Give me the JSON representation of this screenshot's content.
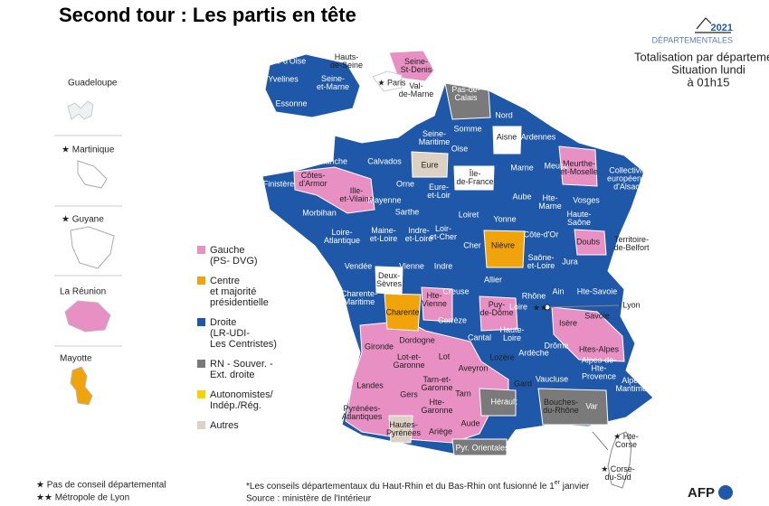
{
  "header": {
    "title": "Second tour : Les partis en tête",
    "logo_year": "2021",
    "logo_label": "DÉPARTEMENTALES",
    "subtitle": [
      "Totalisation par département",
      "Situation lundi",
      "à 01h15"
    ]
  },
  "overseas": [
    "Guadeloupe",
    "★ Martinique",
    "★ Guyane",
    "La Réunion",
    "Mayotte"
  ],
  "legend": [
    {
      "label": [
        "Gauche",
        "(PS- DVG)"
      ],
      "color": "#e88fc3"
    },
    {
      "label": [
        "Centre",
        "et majorité",
        "présidentielle"
      ],
      "color": "#f0a30a"
    },
    {
      "label": [
        "Droite",
        "(LR-UDI-",
        "Les Centristes)"
      ],
      "color": "#1f58a8"
    },
    {
      "label": [
        "RN - Souver. -",
        "Ext. droite"
      ],
      "color": "#7a7a7a"
    },
    {
      "label": [
        "Autonomistes/",
        "Indép./Rég."
      ],
      "color": "#f3d200"
    },
    {
      "label": [
        "Autres"
      ],
      "color": "#dcd1c2"
    }
  ],
  "paris_inset": [
    [
      "Val-d'Oise"
    ],
    [
      "Yvelines"
    ],
    [
      "Seine-",
      "et-Marne"
    ],
    [
      "Essonne"
    ],
    [
      "Hauts-",
      "de-Seine"
    ],
    [
      "Seine-",
      "St-Denis"
    ],
    [
      "★ Paris"
    ],
    [
      "Val-",
      "de-Marne"
    ]
  ],
  "map_markers": [
    "★★"
  ],
  "departments": [
    [
      "Pas-de-",
      "Calais"
    ],
    [
      "Nord"
    ],
    [
      "Somme"
    ],
    [
      "Aisne"
    ],
    [
      "Ardennes"
    ],
    [
      "Seine-",
      "Maritime"
    ],
    [
      "Oise"
    ],
    [
      "Eure"
    ],
    [
      "Manche"
    ],
    [
      "Calvados"
    ],
    [
      "Marne"
    ],
    [
      "Meuse"
    ],
    [
      "Meurthe-",
      "et-Moselle"
    ],
    [
      "Collectivité",
      "européenne",
      "d'Alsace"
    ],
    [
      "Île-",
      "de-France"
    ],
    [
      "Finistère"
    ],
    [
      "Côtes-",
      "d'Armor"
    ],
    [
      "Orne"
    ],
    [
      "Eure-",
      "et-Loir"
    ],
    [
      "Aube"
    ],
    [
      "Vosges"
    ],
    [
      "Ille-",
      "et-Vilaine"
    ],
    [
      "Mayenne"
    ],
    [
      "Hte-",
      "Marne"
    ],
    [
      "Morbihan"
    ],
    [
      "Sarthe"
    ],
    [
      "Loiret"
    ],
    [
      "Yonne"
    ],
    [
      "Haute-",
      "Saône"
    ],
    [
      "Côte-d'Or"
    ],
    [
      "Loire-",
      "Atlantique"
    ],
    [
      "Maine-",
      "et-Loire"
    ],
    [
      "Indre-",
      "et-Loire"
    ],
    [
      "Loir-",
      "et-Cher"
    ],
    [
      "Cher"
    ],
    [
      "Nièvre"
    ],
    [
      "Doubs"
    ],
    [
      "Territoire-",
      "de-Belfort"
    ],
    [
      "Vendée"
    ],
    [
      "Indre"
    ],
    [
      "Saône-",
      "et-Loire"
    ],
    [
      "Jura"
    ],
    [
      "Deux-",
      "Sèvres"
    ],
    [
      "Vienne"
    ],
    [
      "Allier"
    ],
    [
      "Creuse"
    ],
    [
      "Rhône"
    ],
    [
      "Ain"
    ],
    [
      "Hte-Savoie"
    ],
    [
      "Charente-",
      "Maritime"
    ],
    [
      "Charente"
    ],
    [
      "Hte-",
      "Vienne"
    ],
    [
      "Puy-",
      "de-Dôme"
    ],
    [
      "Loire"
    ],
    [
      "Savoie"
    ],
    [
      "Lyon"
    ],
    [
      "Corrèze"
    ],
    [
      "Isère"
    ],
    [
      "Gironde"
    ],
    [
      "Dordogne"
    ],
    [
      "Cantal"
    ],
    [
      "Haute-",
      "Loire"
    ],
    [
      "Drôme"
    ],
    [
      "Htes-Alpes"
    ],
    [
      "Lot"
    ],
    [
      "Lozère"
    ],
    [
      "Ardèche"
    ],
    [
      "Lot-et-",
      "Garonne"
    ],
    [
      "Aveyron"
    ],
    [
      "Gard"
    ],
    [
      "Alpes-de-",
      "Hte-",
      "Provence"
    ],
    [
      "Landes"
    ],
    [
      "Tarn-et-",
      "Garonne"
    ],
    [
      "Vaucluse"
    ],
    [
      "Alpes-",
      "Maritimes"
    ],
    [
      "Gers"
    ],
    [
      "Tarn"
    ],
    [
      "Hérault"
    ],
    [
      "Bouches-",
      "du-Rhône"
    ],
    [
      "Var"
    ],
    [
      "Hte-",
      "Garonne"
    ],
    [
      "Pyrénées-",
      "Atlantiques"
    ],
    [
      "Aude"
    ],
    [
      "Hautes-",
      "Pyrénées"
    ],
    [
      "Ariège"
    ],
    [
      "Pyr. Orientales"
    ],
    [
      "★ Hte-",
      "Corse"
    ],
    [
      "★ Corse-",
      "du-Sud"
    ]
  ],
  "footnotes": {
    "star": "★ Pas de conseil départemental",
    "double_star": "★★ Métropole de Lyon",
    "note_start": "*Les conseils départementaux du Haut-Rhin et du Bas-Rhin ont fusionné le 1",
    "note_sup": "er",
    "note_end": " janvier",
    "source": "Source : ministère de l'Intérieur",
    "agency": "AFP"
  }
}
